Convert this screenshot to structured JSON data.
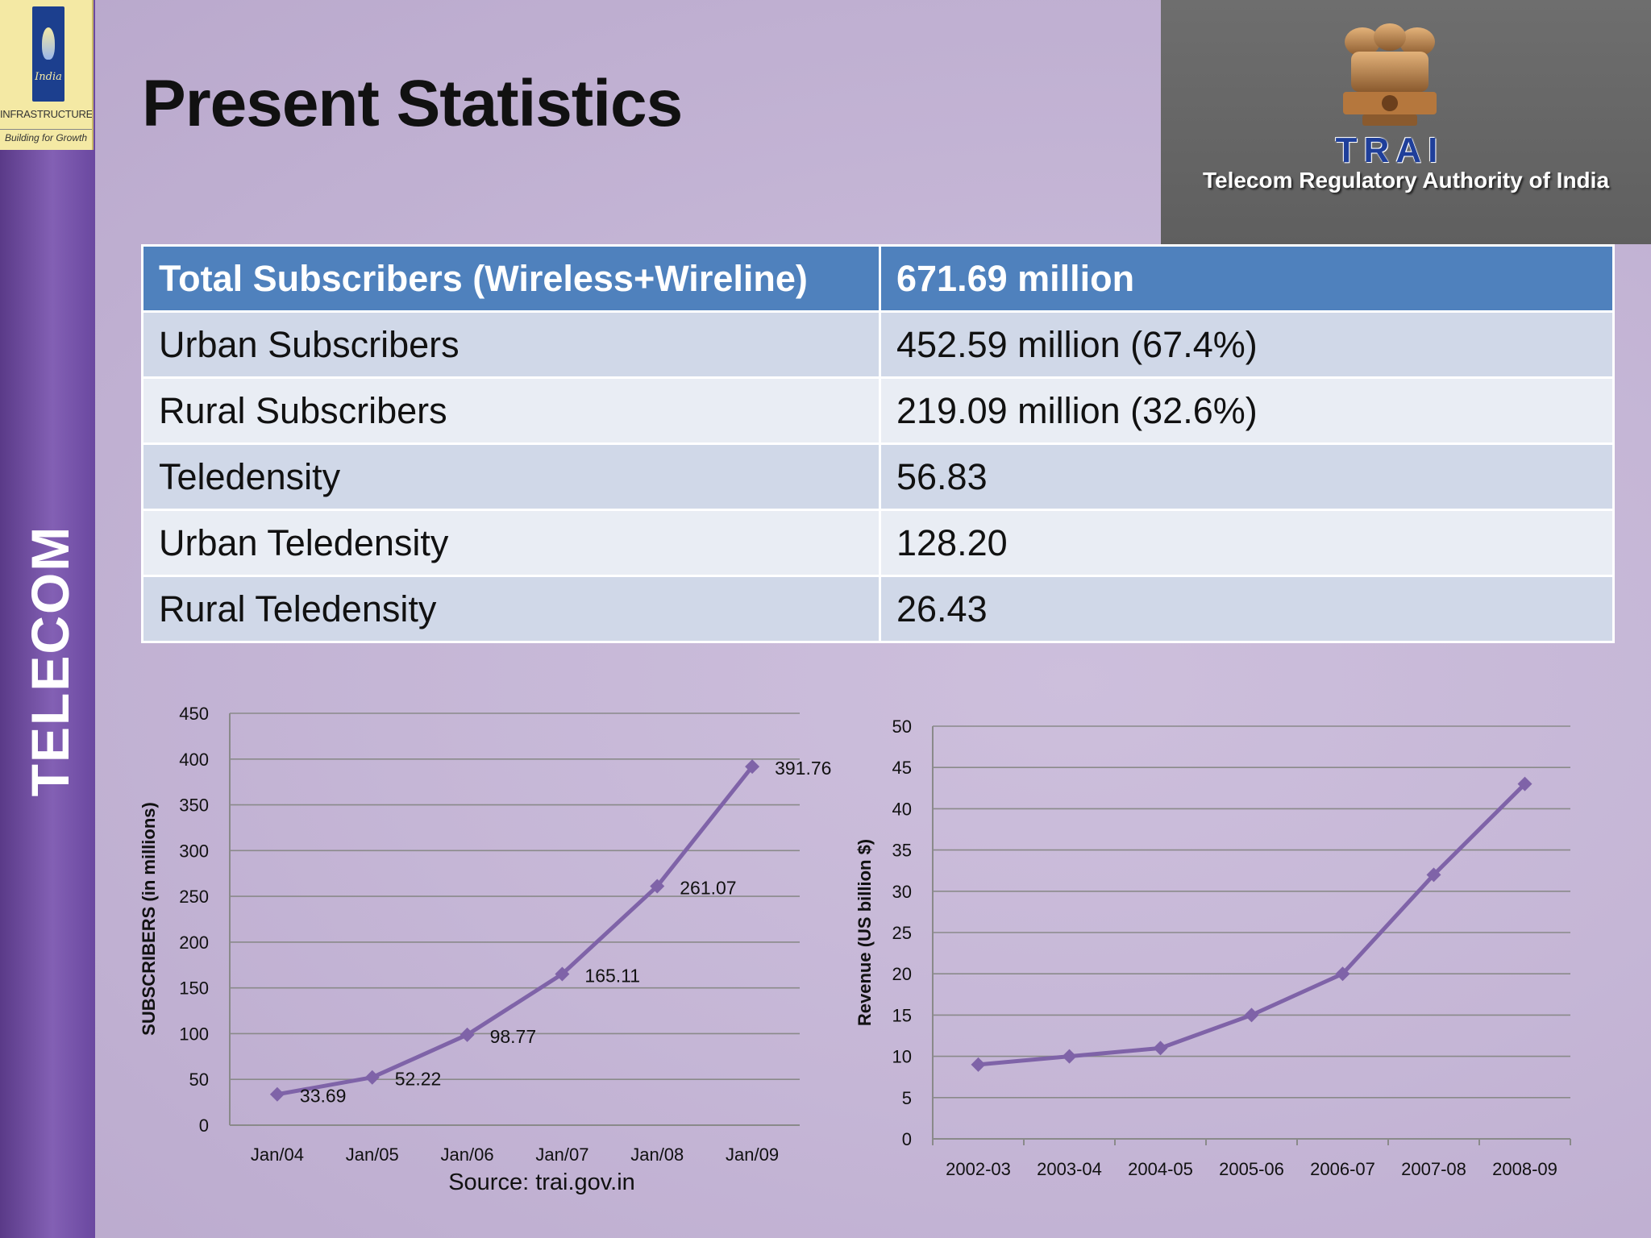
{
  "sidebar": {
    "logo_line1": "INFRASTRUCTURE",
    "logo_line2": "Building for Growth",
    "logo_mark_text": "India",
    "vertical_label": "TELECOM"
  },
  "slide_title": "Present Statistics",
  "trai": {
    "acronym": "TRAI",
    "full_name": "Telecom Regulatory Authority of India"
  },
  "stats_table": {
    "rows": [
      {
        "label": "Total Subscribers (Wireless+Wireline)",
        "value": "671.69 million"
      },
      {
        "label": "Urban Subscribers",
        "value": "452.59 million (67.4%)"
      },
      {
        "label": "Rural Subscribers",
        "value": "219.09 million (32.6%)"
      },
      {
        "label": "Teledensity",
        "value": "56.83"
      },
      {
        "label": "Urban Teledensity",
        "value": "128.20"
      },
      {
        "label": "Rural Teledensity",
        "value": "26.43"
      }
    ]
  },
  "colors": {
    "series_line": "#7f63a8",
    "table_header": "#4f81bd",
    "sidebar": "#7a56ac"
  },
  "chart_data": [
    {
      "type": "line",
      "categories": [
        "Jan/04",
        "Jan/05",
        "Jan/06",
        "Jan/07",
        "Jan/08",
        "Jan/09"
      ],
      "values": [
        33.69,
        52.22,
        98.77,
        165.11,
        261.07,
        391.76
      ],
      "data_labels": [
        "33.69",
        "52.22",
        "98.77",
        "165.11",
        "261.07",
        "391.76"
      ],
      "ylabel": "SUBSCRIBERS (in millions)",
      "ylim": [
        0,
        450
      ],
      "yticks": [
        0,
        50,
        100,
        150,
        200,
        250,
        300,
        350,
        400,
        450
      ],
      "grid": true,
      "source_note": "Source: trai.gov.in"
    },
    {
      "type": "line",
      "categories": [
        "2002-03",
        "2003-04",
        "2004-05",
        "2005-06",
        "2006-07",
        "2007-08",
        "2008-09"
      ],
      "values": [
        9,
        10,
        11,
        15,
        20,
        32,
        43
      ],
      "ylabel": "Revenue (US billion $)",
      "ylim": [
        0,
        50
      ],
      "yticks": [
        0,
        5,
        10,
        15,
        20,
        25,
        30,
        35,
        40,
        45,
        50
      ],
      "grid": true
    }
  ]
}
